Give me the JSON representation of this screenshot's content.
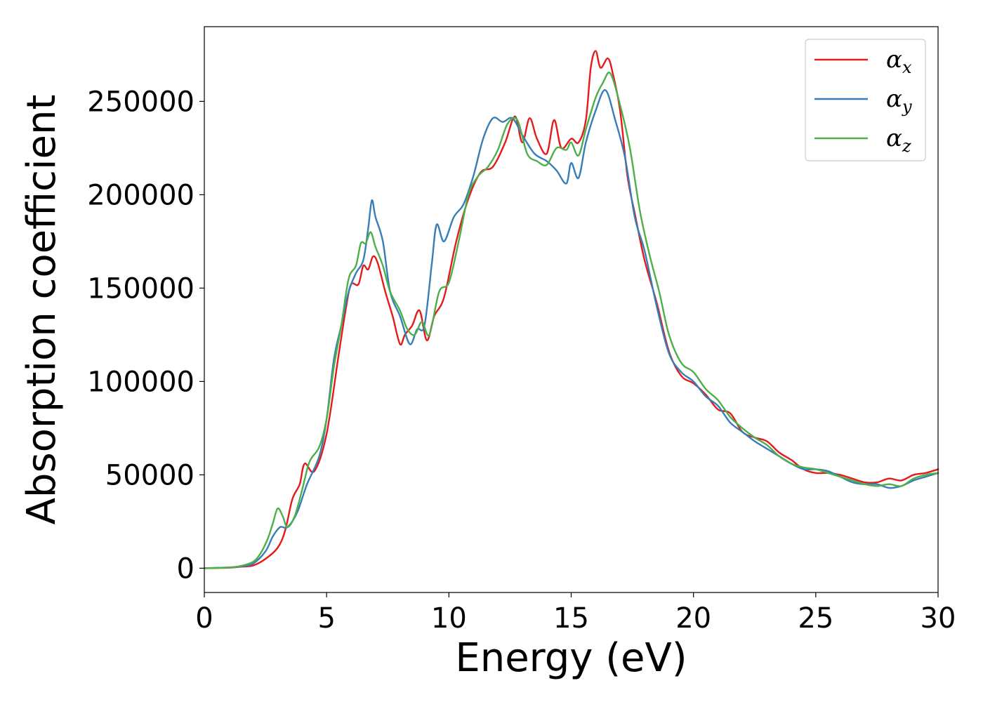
{
  "chart_data": {
    "type": "line",
    "title": "",
    "xlabel": "Energy (eV)",
    "ylabel": "Absorption coefficient",
    "xlim": [
      0,
      30
    ],
    "ylim": [
      -13000,
      290000
    ],
    "xticks": [
      0,
      5,
      10,
      15,
      20,
      25,
      30
    ],
    "yticks": [
      0,
      50000,
      100000,
      150000,
      200000,
      250000
    ],
    "xtick_labels": [
      "0",
      "5",
      "10",
      "15",
      "20",
      "25",
      "30"
    ],
    "ytick_labels": [
      "0",
      "50000",
      "100000",
      "150000",
      "200000",
      "250000"
    ],
    "grid": false,
    "legend_position": "top-right",
    "series": [
      {
        "name": "α_x",
        "symbol": "α",
        "subscript": "x",
        "color": "#e41a1c",
        "x": [
          0,
          1,
          1.5,
          2,
          2.5,
          3,
          3.3,
          3.6,
          3.9,
          4.1,
          4.5,
          5,
          5.5,
          5.8,
          6.0,
          6.3,
          6.5,
          6.7,
          6.9,
          7.1,
          7.4,
          7.7,
          8.0,
          8.2,
          8.5,
          8.8,
          9.1,
          9.4,
          9.8,
          10.3,
          10.8,
          11.3,
          11.8,
          12.3,
          12.7,
          13.0,
          13.3,
          13.6,
          14.0,
          14.3,
          14.6,
          15.0,
          15.3,
          15.6,
          15.8,
          16.0,
          16.2,
          16.5,
          16.7,
          17.0,
          17.3,
          17.6,
          18.0,
          18.5,
          19.0,
          19.5,
          20.0,
          20.5,
          21.0,
          21.5,
          22.0,
          22.5,
          23.0,
          23.5,
          24.0,
          24.5,
          25.0,
          25.5,
          26.0,
          26.5,
          27.0,
          27.5,
          28.0,
          28.5,
          29.0,
          29.5,
          30
        ],
        "y": [
          0,
          300,
          800,
          1500,
          5000,
          11000,
          20000,
          37000,
          45000,
          56000,
          52000,
          72000,
          115000,
          140000,
          152000,
          152000,
          162000,
          160000,
          167000,
          163000,
          148000,
          135000,
          120000,
          125000,
          130000,
          138000,
          122000,
          135000,
          145000,
          175000,
          198000,
          212000,
          215000,
          228000,
          242000,
          228000,
          241000,
          230000,
          222000,
          240000,
          225000,
          230000,
          228000,
          240000,
          268000,
          277000,
          268000,
          273000,
          265000,
          245000,
          210000,
          190000,
          165000,
          142000,
          116000,
          103000,
          99000,
          93000,
          85000,
          83000,
          73000,
          70000,
          68000,
          62000,
          58000,
          53000,
          51000,
          51000,
          50000,
          48000,
          46000,
          46000,
          48000,
          47000,
          50000,
          51000,
          53000
        ]
      },
      {
        "name": "α_y",
        "symbol": "α",
        "subscript": "y",
        "color": "#377eb8",
        "x": [
          0,
          1,
          1.5,
          2,
          2.5,
          2.8,
          3.1,
          3.4,
          3.8,
          4.2,
          4.7,
          5.0,
          5.3,
          5.6,
          5.9,
          6.2,
          6.5,
          6.7,
          6.85,
          7.0,
          7.3,
          7.6,
          8.0,
          8.4,
          8.7,
          9.0,
          9.3,
          9.5,
          9.8,
          10.2,
          10.6,
          11.0,
          11.4,
          11.8,
          12.2,
          12.6,
          13.0,
          13.5,
          14.0,
          14.4,
          14.8,
          15.0,
          15.3,
          15.6,
          16.0,
          16.4,
          16.8,
          17.2,
          17.6,
          18.0,
          18.5,
          19.0,
          19.5,
          20.0,
          20.5,
          21.0,
          21.5,
          22.0,
          22.5,
          23.0,
          23.5,
          24.0,
          24.5,
          25.0,
          25.5,
          26.0,
          26.5,
          27.0,
          27.5,
          28.0,
          28.5,
          29.0,
          29.5,
          30
        ],
        "y": [
          0,
          400,
          1000,
          2500,
          9000,
          17000,
          22000,
          22000,
          30000,
          45000,
          60000,
          80000,
          112000,
          130000,
          148000,
          158000,
          165000,
          182000,
          197000,
          188000,
          175000,
          148000,
          135000,
          120000,
          128000,
          130000,
          163000,
          184000,
          175000,
          188000,
          195000,
          210000,
          230000,
          241000,
          239000,
          241000,
          232000,
          222000,
          218000,
          213000,
          206000,
          217000,
          209000,
          228000,
          245000,
          256000,
          240000,
          220000,
          188000,
          170000,
          140000,
          115000,
          105000,
          100000,
          92000,
          87000,
          78000,
          73000,
          68000,
          64000,
          60000,
          56000,
          53000,
          53000,
          52000,
          49000,
          46000,
          45000,
          45000,
          43000,
          44000,
          47000,
          49000,
          51000
        ]
      },
      {
        "name": "α_z",
        "symbol": "α",
        "subscript": "z",
        "color": "#4daf4a",
        "x": [
          0,
          1,
          1.5,
          2,
          2.3,
          2.6,
          2.8,
          3.0,
          3.2,
          3.4,
          3.7,
          4.0,
          4.3,
          4.7,
          5.0,
          5.3,
          5.6,
          5.9,
          6.2,
          6.4,
          6.6,
          6.8,
          7.0,
          7.3,
          7.6,
          8.0,
          8.3,
          8.6,
          8.9,
          9.2,
          9.6,
          10.0,
          10.4,
          10.8,
          11.2,
          11.6,
          12.0,
          12.4,
          12.8,
          13.2,
          13.6,
          14.0,
          14.4,
          14.8,
          15.0,
          15.3,
          15.6,
          16.0,
          16.3,
          16.6,
          17.0,
          17.4,
          17.8,
          18.2,
          18.6,
          19.0,
          19.5,
          20.0,
          20.5,
          21.0,
          21.5,
          22.0,
          22.5,
          23.0,
          23.5,
          24.0,
          24.5,
          25.0,
          25.5,
          26.0,
          26.5,
          27.0,
          27.5,
          28.0,
          28.5,
          29.0,
          29.5,
          30
        ],
        "y": [
          0,
          400,
          1200,
          3500,
          8000,
          16000,
          24000,
          32000,
          28000,
          22000,
          28000,
          42000,
          57000,
          65000,
          80000,
          108000,
          130000,
          155000,
          162000,
          174000,
          174000,
          180000,
          172000,
          162000,
          148000,
          138000,
          128000,
          125000,
          132000,
          125000,
          148000,
          153000,
          175000,
          200000,
          210000,
          215000,
          224000,
          238000,
          240000,
          222000,
          218000,
          216000,
          225000,
          224000,
          228000,
          221000,
          235000,
          252000,
          260000,
          265000,
          248000,
          225000,
          192000,
          168000,
          148000,
          125000,
          110000,
          105000,
          96000,
          90000,
          81000,
          75000,
          70000,
          66000,
          60000,
          56000,
          54000,
          53000,
          51000,
          49000,
          47000,
          45000,
          44000,
          45000,
          44000,
          48000,
          50000,
          51000
        ]
      }
    ]
  }
}
